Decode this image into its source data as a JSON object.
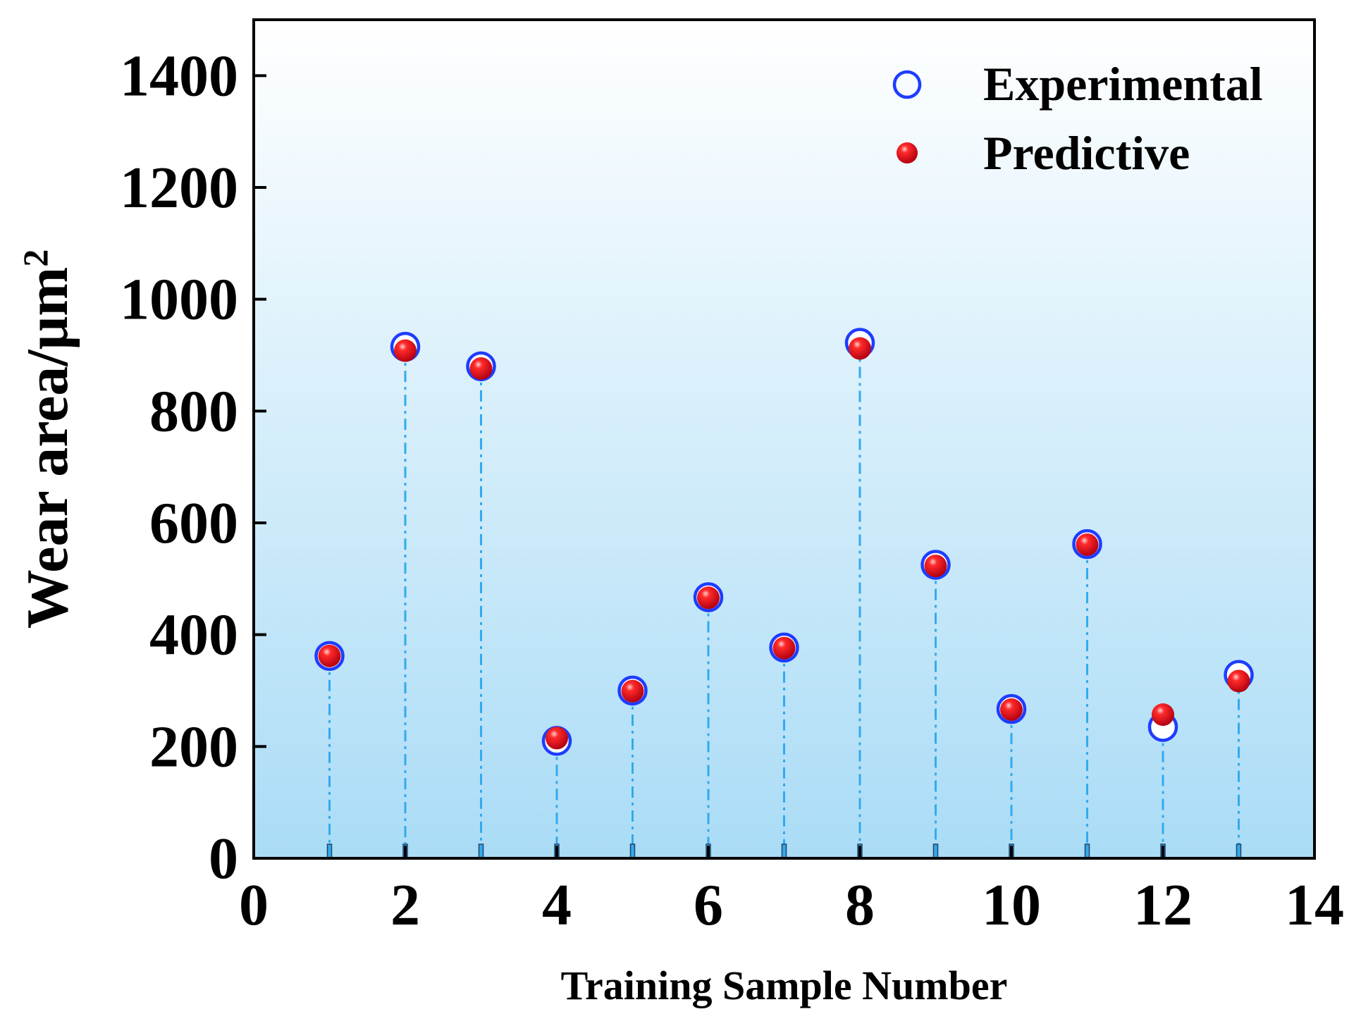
{
  "chart_data": {
    "type": "scatter",
    "title": "",
    "xlabel": "Training Sample Number",
    "ylabel": "Wear area/μm",
    "ylabel_superscript": "2",
    "xlim": [
      0,
      14
    ],
    "ylim": [
      0,
      1500
    ],
    "xticks": [
      0,
      2,
      4,
      6,
      8,
      10,
      12,
      14
    ],
    "yticks": [
      0,
      200,
      400,
      600,
      800,
      1000,
      1200,
      1400
    ],
    "x": [
      1,
      2,
      3,
      4,
      5,
      6,
      7,
      8,
      9,
      10,
      11,
      12,
      13
    ],
    "series": [
      {
        "name": "Experimental",
        "marker": "open-circle",
        "color": "#1e3cff",
        "values": [
          362,
          915,
          880,
          210,
          300,
          467,
          377,
          922,
          525,
          267,
          562,
          235,
          328
        ]
      },
      {
        "name": "Predictive",
        "marker": "filled-sphere",
        "color": "#e0001a",
        "values": [
          362,
          908,
          876,
          215,
          299,
          466,
          376,
          912,
          523,
          266,
          561,
          257,
          317
        ]
      }
    ],
    "drop_lines": {
      "style": "dash-dot",
      "color": "#33aaee",
      "from_series": "Experimental"
    },
    "background_gradient": [
      "#ffffff",
      "#aadcf6"
    ],
    "legend_position": "top-right",
    "grid": false
  }
}
